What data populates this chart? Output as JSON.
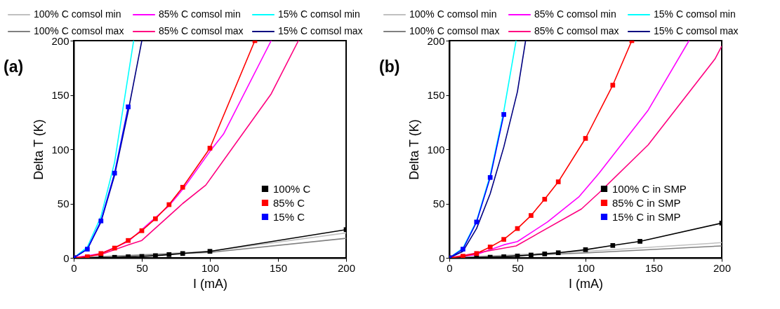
{
  "chart_data": [
    {
      "type": "line",
      "title": "(a)",
      "xlabel": "I (mA)",
      "ylabel": "Delta T (K)",
      "xlim": [
        0,
        200
      ],
      "ylim": [
        0,
        200
      ],
      "xticks": [
        0,
        50,
        100,
        150,
        200
      ],
      "yticks": [
        0,
        50,
        100,
        150,
        200
      ],
      "grid": false,
      "legend": "top",
      "series": [
        {
          "name": "100% C comsol min",
          "color": "#c0c0c0",
          "marker": "none",
          "x": [
            0,
            100,
            200
          ],
          "values": [
            0,
            6,
            23
          ]
        },
        {
          "name": "85% C comsol min",
          "color": "#ff00ff",
          "marker": "none",
          "x": [
            0,
            20,
            40,
            50,
            60,
            70,
            80,
            100,
            110,
            145
          ],
          "values": [
            0,
            4,
            15,
            26,
            37,
            48,
            63,
            98,
            114,
            200
          ]
        },
        {
          "name": "15% C comsol min",
          "color": "#00ffff",
          "marker": "none",
          "x": [
            0,
            10,
            20,
            30,
            44
          ],
          "values": [
            0,
            10,
            38,
            88,
            200
          ]
        },
        {
          "name": "100% C comsol max",
          "color": "#808080",
          "marker": "none",
          "x": [
            0,
            100,
            200
          ],
          "values": [
            0,
            5,
            18
          ]
        },
        {
          "name": "85% C comsol max",
          "color": "#ff0080",
          "marker": "none",
          "x": [
            0,
            20,
            40,
            50,
            80,
            97,
            145,
            165
          ],
          "values": [
            0,
            3,
            12,
            16,
            50,
            67,
            151,
            200
          ]
        },
        {
          "name": "15% C comsol max",
          "color": "#000080",
          "marker": "none",
          "x": [
            0,
            10,
            20,
            30,
            40,
            50
          ],
          "values": [
            0,
            8,
            33,
            76,
            135,
            200
          ]
        },
        {
          "name": "100% C",
          "color": "#000000",
          "marker": "square",
          "x": [
            0,
            10,
            20,
            30,
            40,
            50,
            60,
            70,
            80,
            100,
            200
          ],
          "values": [
            0,
            0,
            0.3,
            0.5,
            1,
            1.3,
            2,
            3,
            4,
            6,
            26
          ]
        },
        {
          "name": "85% C",
          "color": "#ff0000",
          "marker": "square",
          "x": [
            0,
            10,
            20,
            30,
            40,
            50,
            60,
            70,
            80,
            100,
            133
          ],
          "values": [
            0,
            1,
            4,
            9,
            16,
            25,
            36,
            49,
            65,
            101,
            200
          ]
        },
        {
          "name": "15% C",
          "color": "#0000ff",
          "marker": "square",
          "x": [
            0,
            10,
            20,
            30,
            40
          ],
          "values": [
            0,
            8,
            34,
            78,
            139
          ]
        }
      ]
    },
    {
      "type": "line",
      "title": "(b)",
      "xlabel": "I (mA)",
      "ylabel": "Delta T (K)",
      "xlim": [
        0,
        200
      ],
      "ylim": [
        0,
        200
      ],
      "xticks": [
        0,
        50,
        100,
        150,
        200
      ],
      "yticks": [
        0,
        50,
        100,
        150,
        200
      ],
      "grid": false,
      "legend": "top",
      "series": [
        {
          "name": "100% C comsol min",
          "color": "#c0c0c0",
          "marker": "none",
          "x": [
            0,
            100,
            200
          ],
          "values": [
            0,
            6,
            14
          ]
        },
        {
          "name": "85% C comsol min",
          "color": "#ff00ff",
          "marker": "none",
          "x": [
            0,
            20,
            40,
            50,
            72,
            95,
            110,
            146,
            176
          ],
          "values": [
            0,
            3,
            12,
            15,
            33,
            56,
            78,
            136,
            200
          ]
        },
        {
          "name": "15% C comsol min",
          "color": "#00ffff",
          "marker": "none",
          "x": [
            0,
            10,
            20,
            30,
            40,
            49
          ],
          "values": [
            0,
            9,
            34,
            76,
            135,
            200
          ]
        },
        {
          "name": "100% C comsol max",
          "color": "#808080",
          "marker": "none",
          "x": [
            0,
            100,
            200
          ],
          "values": [
            0,
            4.5,
            11
          ]
        },
        {
          "name": "85% C comsol max",
          "color": "#ff0080",
          "marker": "none",
          "x": [
            0,
            49,
            97,
            110,
            146,
            195,
            200
          ],
          "values": [
            0,
            11,
            45,
            60,
            104,
            183,
            195
          ]
        },
        {
          "name": "15% C comsol max",
          "color": "#000080",
          "marker": "none",
          "x": [
            0,
            10,
            20,
            30,
            40,
            50,
            56
          ],
          "values": [
            0,
            6,
            27,
            59,
            102,
            153,
            200
          ]
        },
        {
          "name": "100% C in SMP",
          "color": "#000000",
          "marker": "square",
          "x": [
            0,
            10,
            20,
            30,
            40,
            50,
            60,
            70,
            80,
            100,
            120,
            140,
            200
          ],
          "values": [
            0,
            0,
            0.3,
            0.6,
            1,
            1.7,
            2.6,
            3.6,
            4.7,
            7.5,
            11.4,
            15.2,
            32
          ]
        },
        {
          "name": "85% C in SMP",
          "color": "#ff0000",
          "marker": "square",
          "x": [
            0,
            10,
            20,
            30,
            40,
            50,
            60,
            70,
            80,
            100,
            120,
            134
          ],
          "values": [
            0,
            1.5,
            4,
            10,
            17,
            27,
            39,
            54,
            70,
            110,
            159,
            200
          ]
        },
        {
          "name": "15% C in SMP",
          "color": "#0000ff",
          "marker": "square",
          "x": [
            0,
            10,
            20,
            30,
            40
          ],
          "values": [
            0,
            8,
            33,
            74,
            132
          ]
        }
      ]
    }
  ]
}
